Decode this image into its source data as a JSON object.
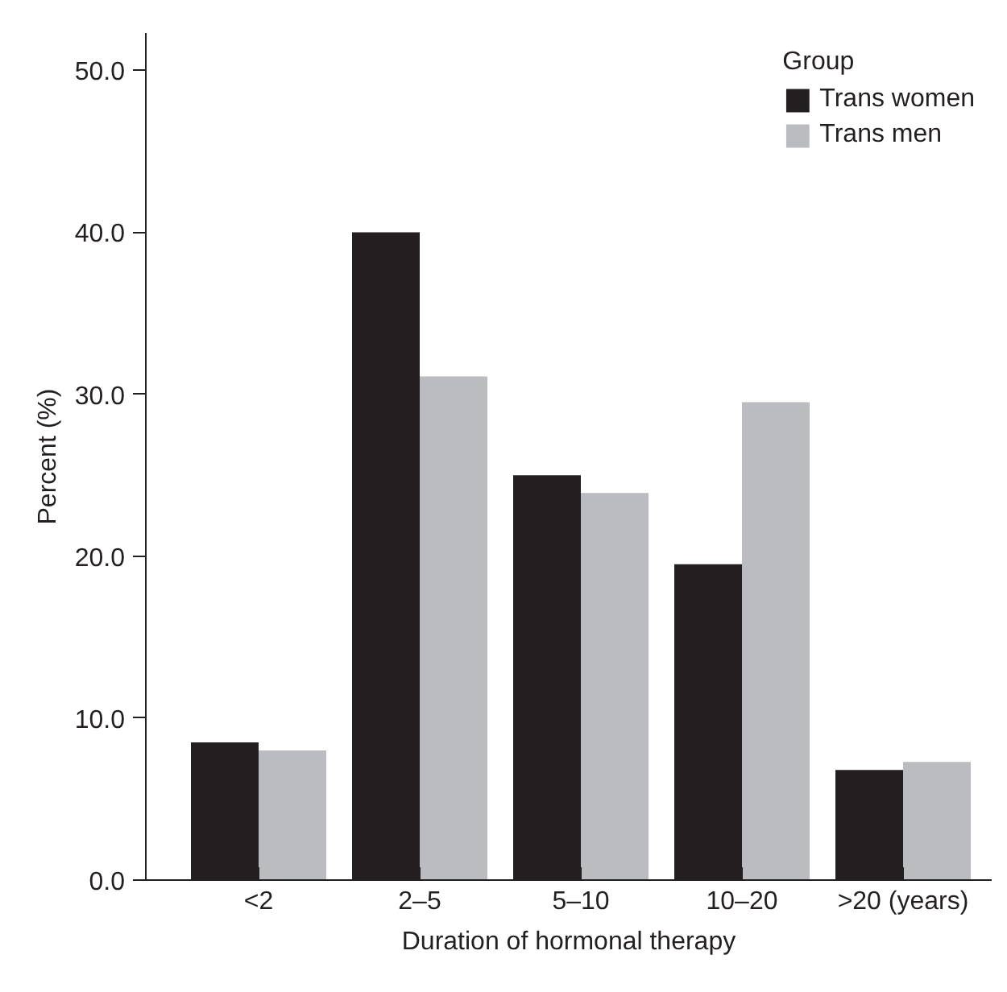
{
  "chart_data": {
    "type": "bar",
    "xlabel": "Duration of hormonal therapy",
    "ylabel": "Percent (%)",
    "legend_title": "Group",
    "categories": [
      "<2",
      "2–5",
      "5–10",
      "10–20",
      ">20 (years)"
    ],
    "series": [
      {
        "name": "Trans women",
        "color": "#231f20",
        "values": [
          8.5,
          40.0,
          25.0,
          19.5,
          6.8
        ]
      },
      {
        "name": "Trans men",
        "color": "#bbbcc0",
        "values": [
          8.0,
          31.1,
          23.9,
          29.5,
          7.3
        ]
      }
    ],
    "ylim": [
      0,
      52.3
    ],
    "yticks": [
      {
        "value": 0,
        "label": "0.0"
      },
      {
        "value": 10,
        "label": "10.0"
      },
      {
        "value": 20,
        "label": "20.0"
      },
      {
        "value": 30,
        "label": "30.0"
      },
      {
        "value": 40,
        "label": "40.0"
      },
      {
        "value": 50,
        "label": "50.0"
      }
    ],
    "grid": false,
    "legend": "top right"
  }
}
